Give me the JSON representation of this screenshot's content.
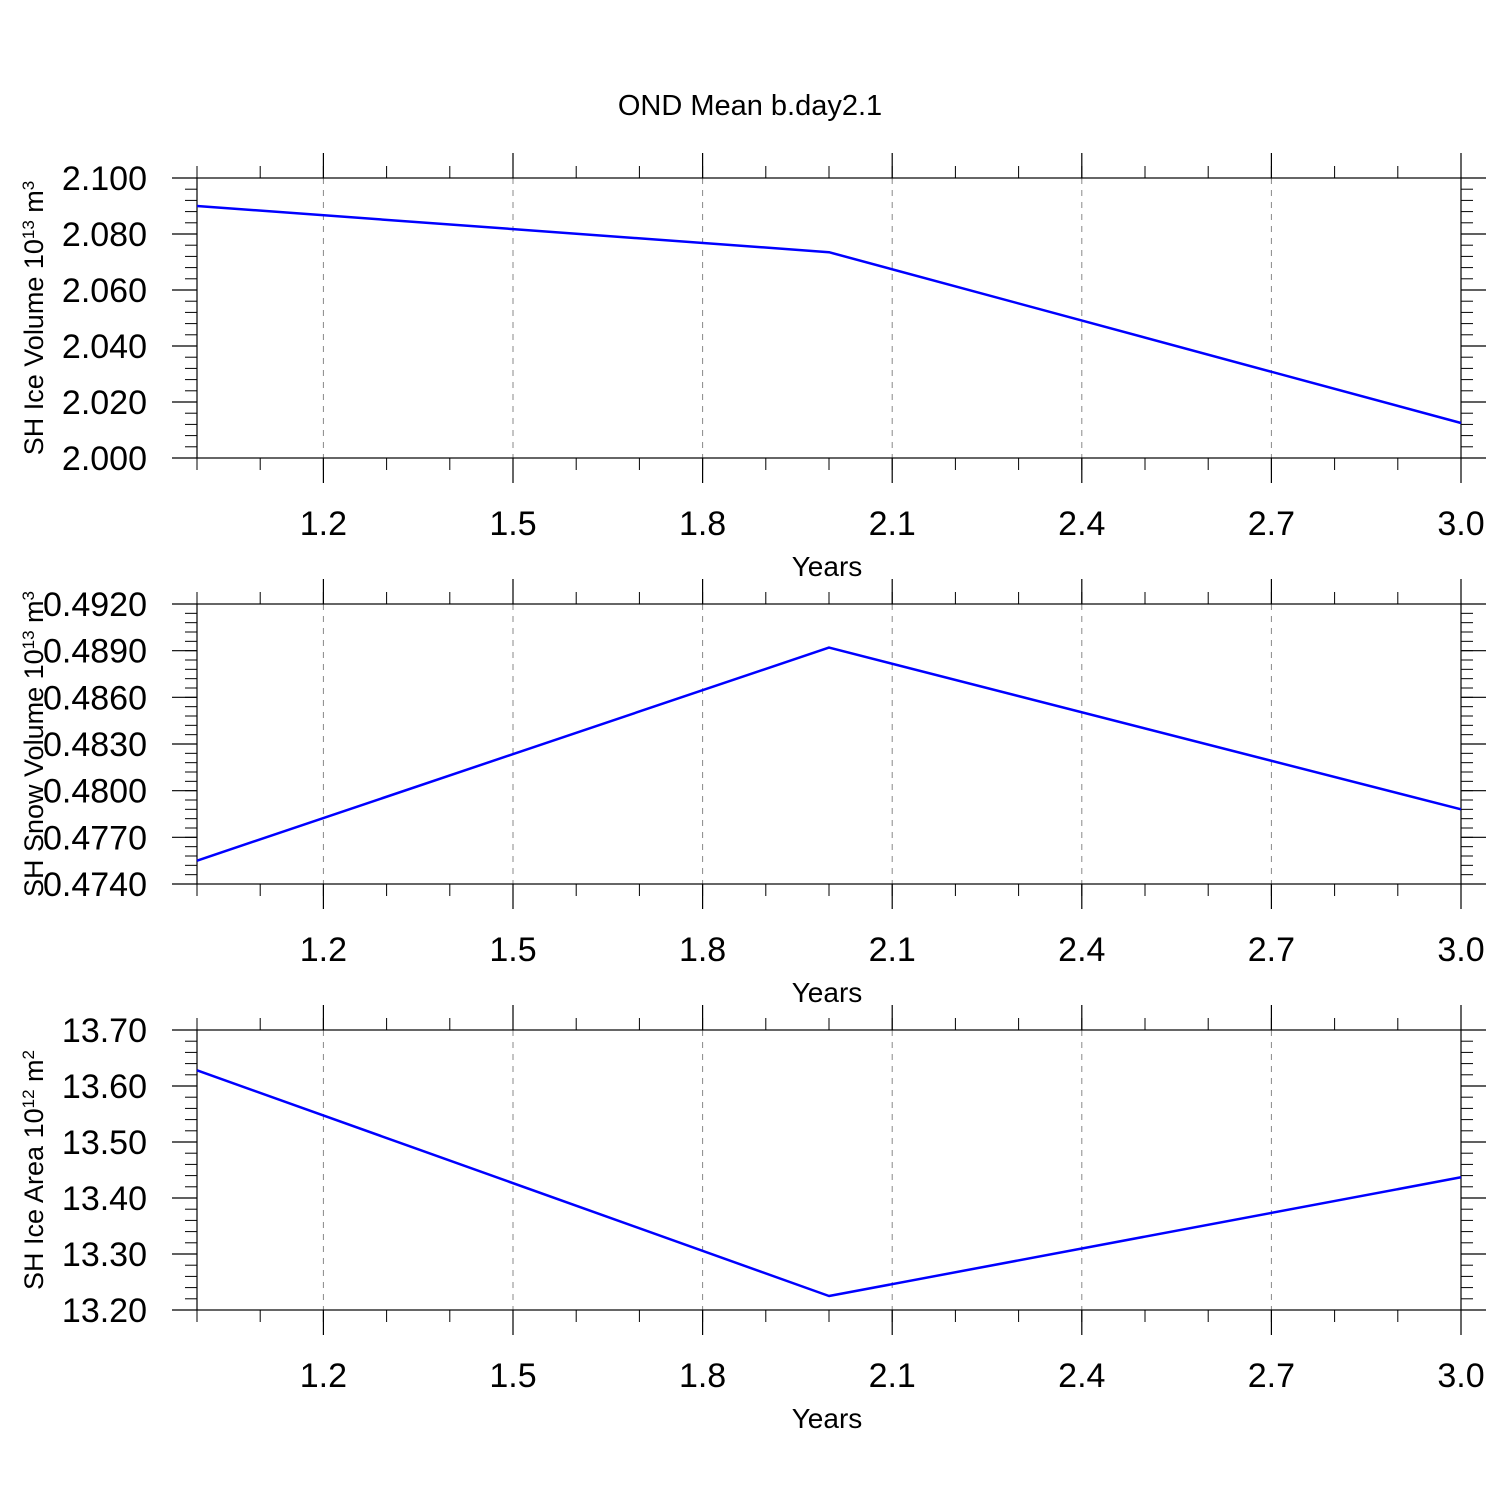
{
  "title": "OND Mean b.day2.1",
  "colors": {
    "line": "#0000ff",
    "axis": "#000000",
    "grid": "#888888"
  },
  "chart_data": [
    {
      "type": "line",
      "title": "OND Mean b.day2.1",
      "xlabel": "Years",
      "ylabel": {
        "main": "SH Ice Volume 10",
        "sup": "13",
        "unit": " m",
        "unit_sup": "3"
      },
      "xlim": [
        1.0,
        3.0
      ],
      "ylim": [
        2.0,
        2.1
      ],
      "x_ticks": [
        "1.2",
        "1.5",
        "1.8",
        "2.1",
        "2.4",
        "2.7",
        "3.0"
      ],
      "y_ticks": [
        "2.000",
        "2.020",
        "2.040",
        "2.060",
        "2.080",
        "2.100"
      ],
      "grid": "x-dashed",
      "series": [
        {
          "x": [
            1,
            2,
            3
          ],
          "y": [
            2.09,
            2.0735,
            2.0125
          ]
        }
      ]
    },
    {
      "type": "line",
      "xlabel": "Years",
      "ylabel": {
        "main": "SH Snow Volume 10",
        "sup": "13",
        "unit": " m",
        "unit_sup": "3"
      },
      "xlim": [
        1.0,
        3.0
      ],
      "ylim": [
        0.474,
        0.492
      ],
      "x_ticks": [
        "1.2",
        "1.5",
        "1.8",
        "2.1",
        "2.4",
        "2.7",
        "3.0"
      ],
      "y_ticks": [
        "0.4740",
        "0.4770",
        "0.4800",
        "0.4830",
        "0.4860",
        "0.4890",
        "0.4920"
      ],
      "grid": "x-dashed",
      "series": [
        {
          "x": [
            1,
            2,
            3
          ],
          "y": [
            0.4755,
            0.4892,
            0.4788
          ]
        }
      ]
    },
    {
      "type": "line",
      "xlabel": "Years",
      "ylabel": {
        "main": "SH Ice Area 10",
        "sup": "12",
        "unit": " m",
        "unit_sup": "2"
      },
      "xlim": [
        1.0,
        3.0
      ],
      "ylim": [
        13.2,
        13.7
      ],
      "x_ticks": [
        "1.2",
        "1.5",
        "1.8",
        "2.1",
        "2.4",
        "2.7",
        "3.0"
      ],
      "y_ticks": [
        "13.20",
        "13.30",
        "13.40",
        "13.50",
        "13.60",
        "13.70"
      ],
      "grid": "x-dashed",
      "series": [
        {
          "x": [
            1,
            2,
            3
          ],
          "y": [
            13.628,
            13.225,
            13.437
          ]
        }
      ]
    }
  ]
}
